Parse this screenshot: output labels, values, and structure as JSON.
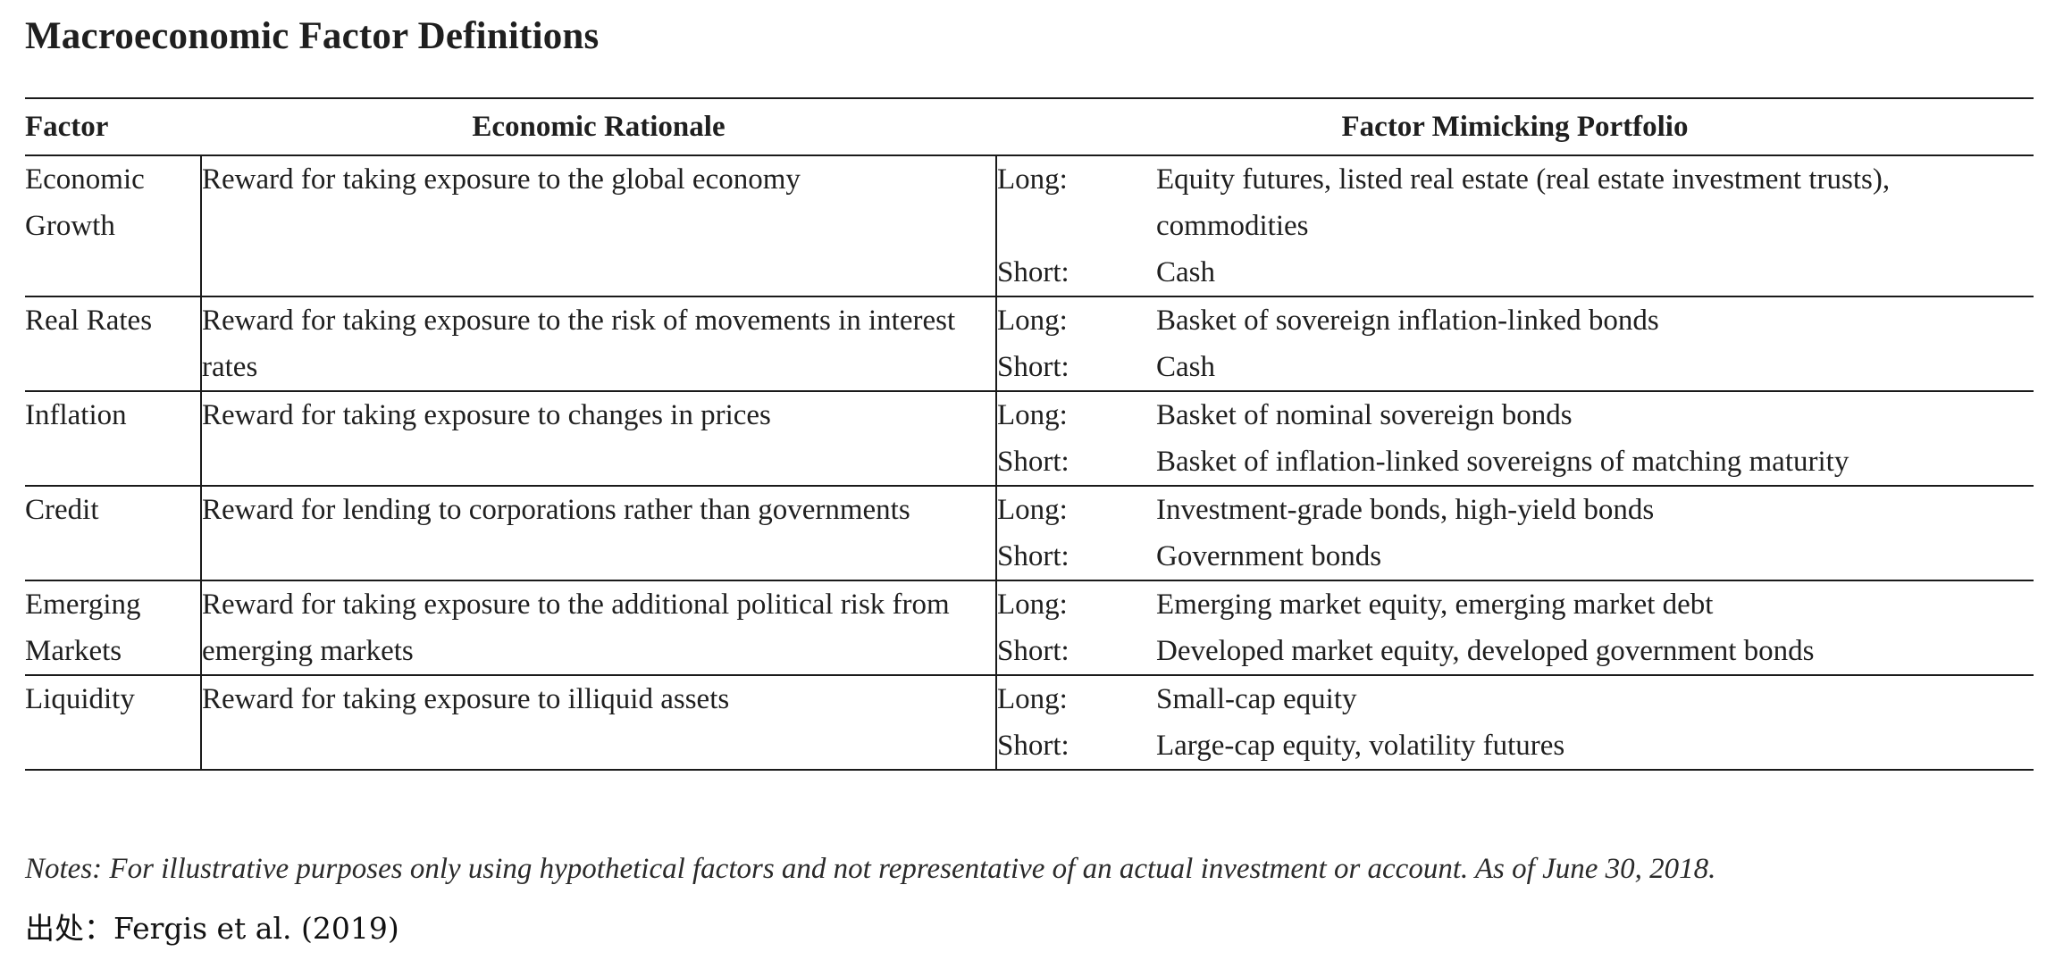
{
  "title": "Macroeconomic Factor Definitions",
  "table": {
    "headers": {
      "factor": "Factor",
      "rationale": "Economic Rationale",
      "portfolio": "Factor Mimicking Portfolio"
    },
    "rows": [
      {
        "factor": "Economic Growth",
        "rationale": "Reward for taking exposure to the global economy",
        "long_label": "Long:",
        "long": "Equity futures, listed real estate (real estate investment trusts), commodities",
        "short_label": "Short:",
        "short": "Cash"
      },
      {
        "factor": "Real Rates",
        "rationale": "Reward for taking exposure to the risk of movements in interest rates",
        "long_label": "Long:",
        "long": "Basket of sovereign inflation-linked bonds",
        "short_label": "Short:",
        "short": "Cash"
      },
      {
        "factor": "Inflation",
        "rationale": "Reward for taking exposure to changes in prices",
        "long_label": "Long:",
        "long": "Basket of nominal sovereign bonds",
        "short_label": "Short:",
        "short": "Basket of inflation-linked sovereigns of matching maturity"
      },
      {
        "factor": "Credit",
        "rationale": "Reward for lending to corporations rather than governments",
        "long_label": "Long:",
        "long": "Investment-grade bonds, high-yield bonds",
        "short_label": "Short:",
        "short": "Government bonds"
      },
      {
        "factor": "Emerging Markets",
        "rationale": "Reward for taking exposure to the additional political risk from emerging markets",
        "long_label": "Long:",
        "long": "Emerging market equity, emerging market debt",
        "short_label": "Short:",
        "short": "Developed market equity, developed government bonds"
      },
      {
        "factor": "Liquidity",
        "rationale": "Reward for taking exposure to illiquid assets",
        "long_label": "Long:",
        "long": "Small-cap equity",
        "short_label": "Short:",
        "short": "Large-cap equity, volatility futures"
      }
    ]
  },
  "notes": "Notes: For illustrative purposes only using hypothetical factors and not representative of an actual investment or account. As of June 30, 2018.",
  "source": "出处：Fergis et al. (2019)"
}
